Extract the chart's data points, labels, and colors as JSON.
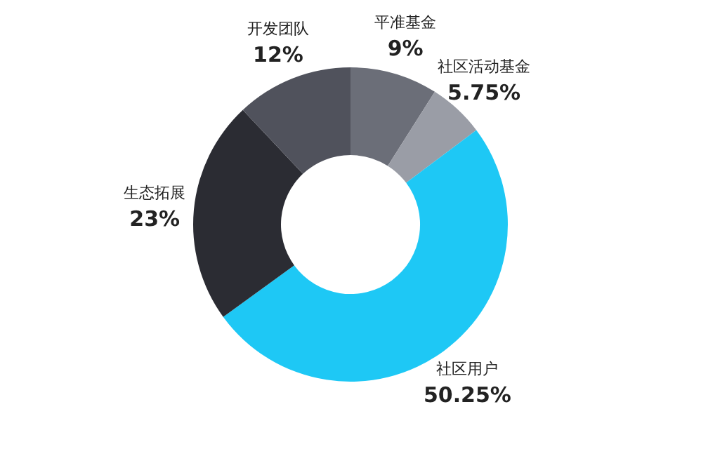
{
  "chart_data": {
    "type": "donut",
    "categories": [
      "平准基金",
      "社区活动基金",
      "社区用户",
      "生态拓展",
      "开发团队"
    ],
    "values": [
      9,
      5.75,
      50.25,
      23,
      12
    ],
    "value_labels": [
      "9%",
      "5.75%",
      "50.25%",
      "23%",
      "12%"
    ],
    "colors": [
      "#6b6e78",
      "#9a9da6",
      "#1ec8f5",
      "#2b2c33",
      "#50525c"
    ],
    "legend": false
  }
}
